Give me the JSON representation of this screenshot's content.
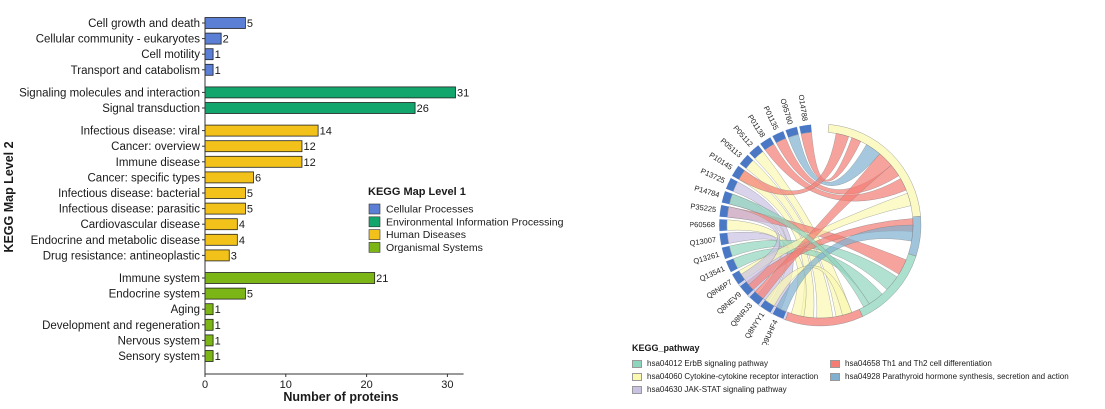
{
  "chart_data": [
    {
      "type": "bar",
      "orientation": "horizontal",
      "xlabel": "Number of proteins",
      "ylabel": "KEGG Map Level 2",
      "xlim": [
        0,
        32
      ],
      "x_ticks": [
        "0",
        "10",
        "20",
        "30"
      ],
      "legend": {
        "title": "KEGG Map Level 1",
        "placement": "center-right",
        "entries": [
          {
            "label": "Cellular Processes",
            "color": "#5b7fd4"
          },
          {
            "label": "Environmental Information Processing",
            "color": "#12a66c"
          },
          {
            "label": "Human Diseases",
            "color": "#f2c21a"
          },
          {
            "label": "Organismal Systems",
            "color": "#7cb516"
          }
        ]
      },
      "groups": [
        {
          "color": "#5b7fd4",
          "items": [
            {
              "label": "Cell growth and death",
              "value": 5
            },
            {
              "label": "Cellular community - eukaryotes",
              "value": 2
            },
            {
              "label": "Cell motility",
              "value": 1
            },
            {
              "label": "Transport and catabolism",
              "value": 1
            }
          ]
        },
        {
          "color": "#12a66c",
          "items": [
            {
              "label": "Signaling molecules and interaction",
              "value": 31
            },
            {
              "label": "Signal transduction",
              "value": 26
            }
          ]
        },
        {
          "color": "#f2c21a",
          "items": [
            {
              "label": "Infectious disease: viral",
              "value": 14
            },
            {
              "label": "Cancer: overview",
              "value": 12
            },
            {
              "label": "Immune disease",
              "value": 12
            },
            {
              "label": "Cancer: specific types",
              "value": 6
            },
            {
              "label": "Infectious disease: bacterial",
              "value": 5
            },
            {
              "label": "Infectious disease: parasitic",
              "value": 5
            },
            {
              "label": "Cardiovascular disease",
              "value": 4
            },
            {
              "label": "Endocrine and metabolic disease",
              "value": 4
            },
            {
              "label": "Drug resistance: antineoplastic",
              "value": 3
            }
          ]
        },
        {
          "color": "#7cb516",
          "items": [
            {
              "label": "Immune system",
              "value": 21
            },
            {
              "label": "Endocrine system",
              "value": 5
            },
            {
              "label": "Aging",
              "value": 1
            },
            {
              "label": "Development and regeneration",
              "value": 1
            },
            {
              "label": "Nervous system",
              "value": 1
            },
            {
              "label": "Sensory system",
              "value": 1
            }
          ]
        }
      ]
    },
    {
      "type": "chord",
      "segment_color": "#4a78c4",
      "proteins": [
        "O14788",
        "O95760",
        "P01135",
        "P01138",
        "P05112",
        "P05113",
        "P10145",
        "P13725",
        "P14784",
        "P35225",
        "P60568",
        "Q13007",
        "Q13261",
        "Q13541",
        "Q8N6P7",
        "Q8NEV9",
        "Q8NRJ3",
        "Q8NYY1",
        "Q9UHF4"
      ],
      "legend": {
        "title": "KEGG_pathway",
        "entries": [
          {
            "label": "hsa04012 ErbB signaling pathway",
            "color": "#8fd4bd"
          },
          {
            "label": "hsa04658 Th1 and Th2 cell differentiation",
            "color": "#f47c74"
          },
          {
            "label": "hsa04060 Cytokine-cytokine receptor interaction",
            "color": "#fbf8b0"
          },
          {
            "label": "hsa04928 Parathyroid hormone synthesis, secretion and action",
            "color": "#7fb0d0"
          },
          {
            "label": "hsa04630 JAK-STAT signaling pathway",
            "color": "#c9c2e2"
          }
        ]
      }
    }
  ]
}
